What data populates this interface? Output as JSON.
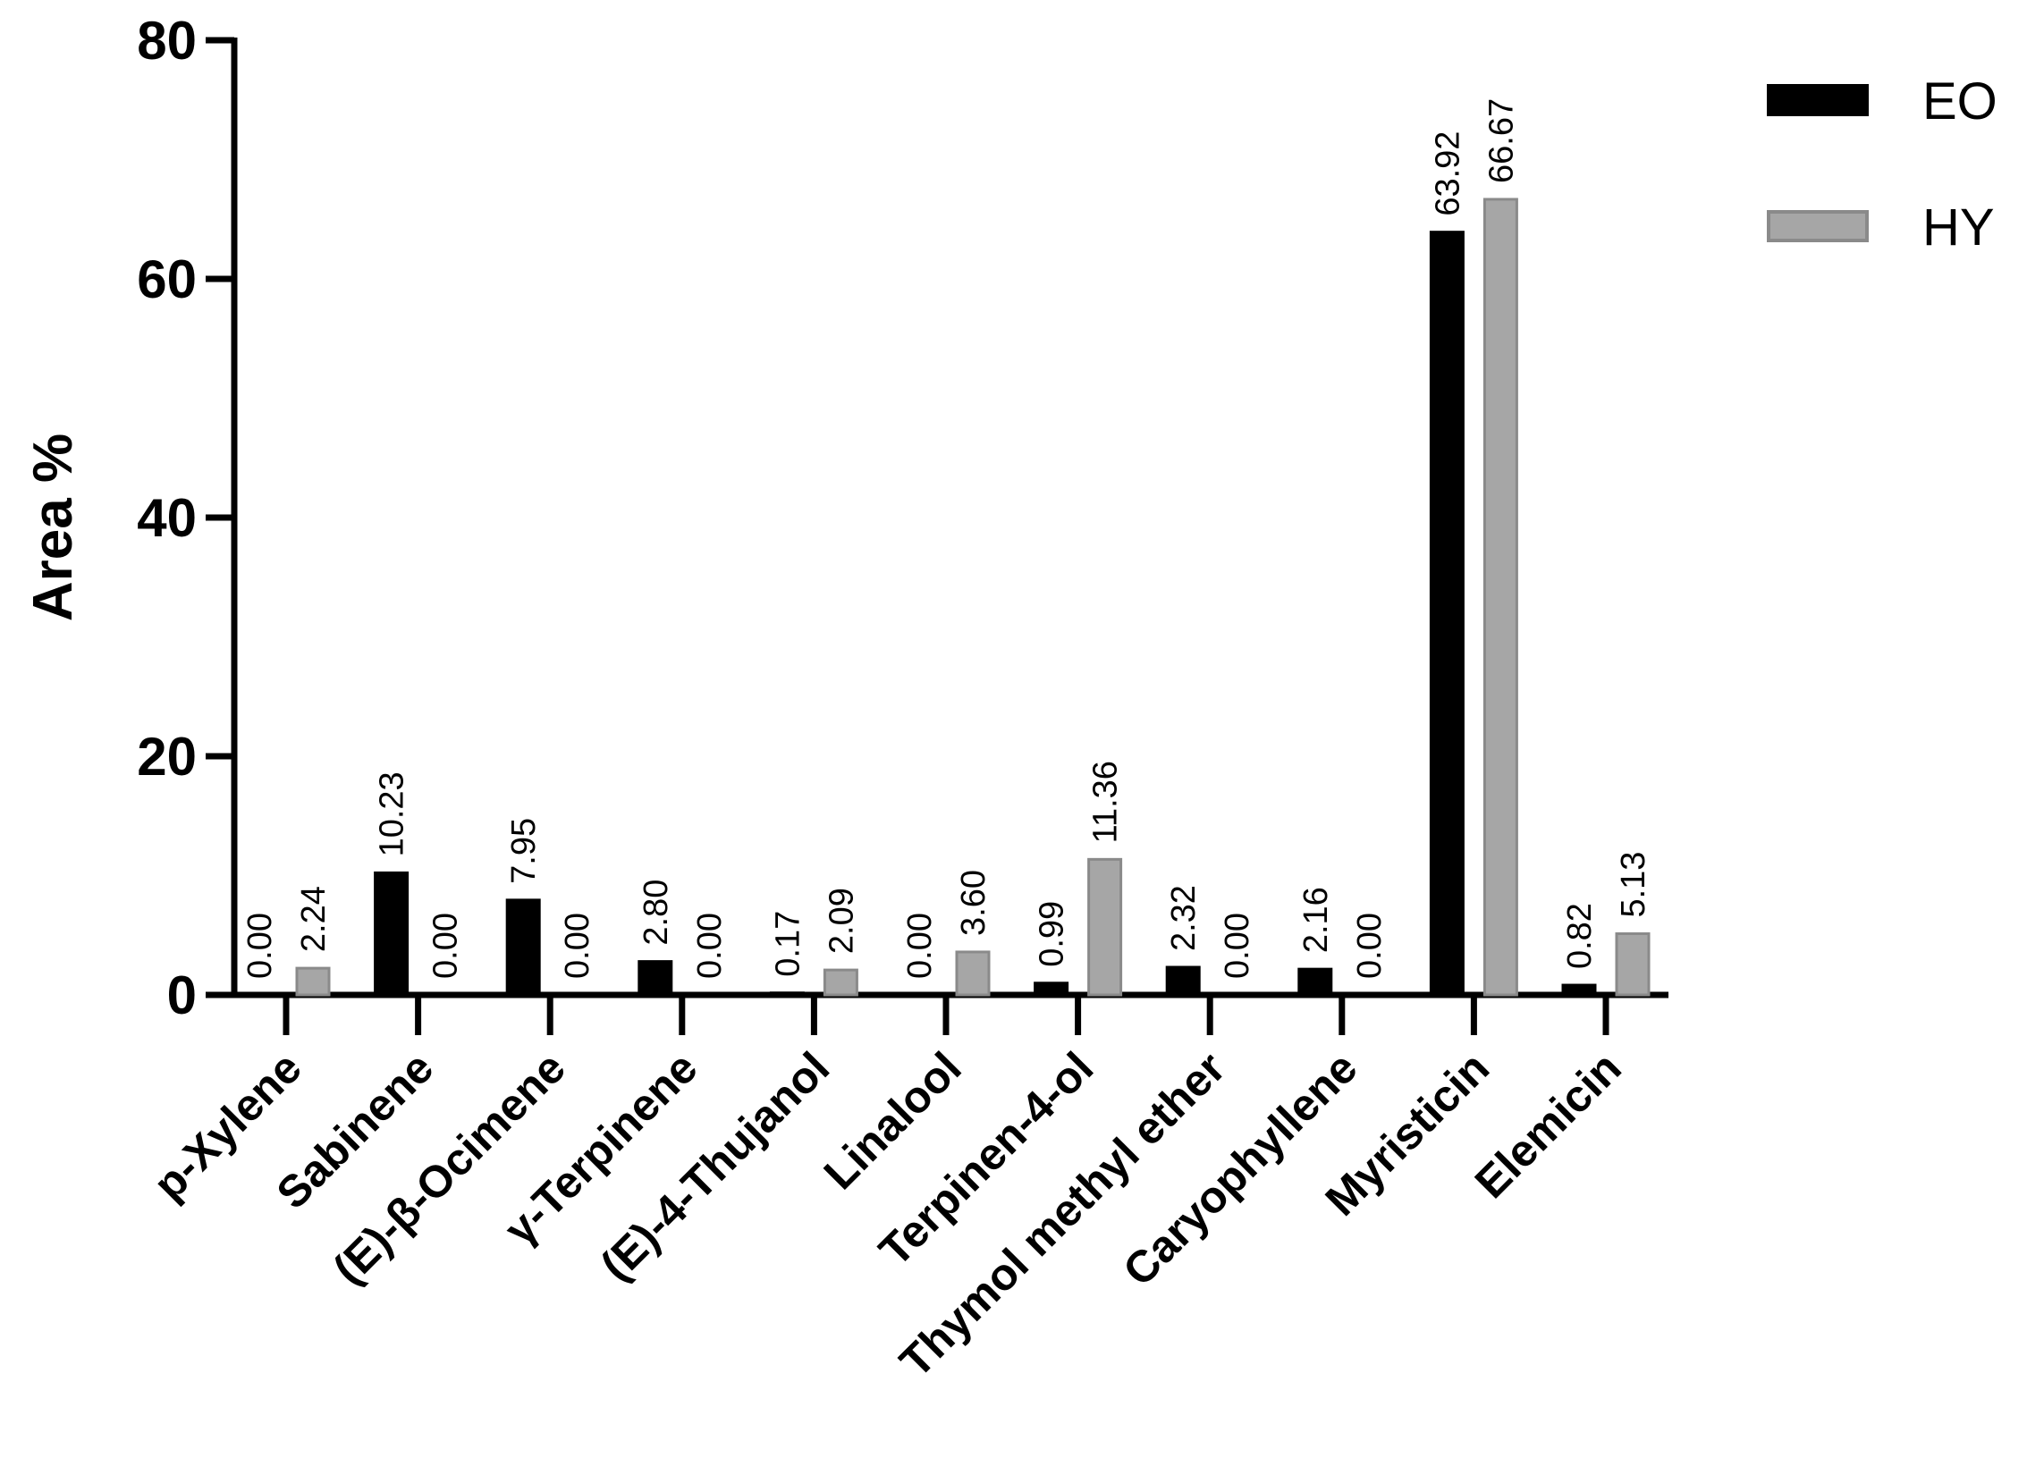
{
  "chart_data": {
    "type": "bar",
    "categories": [
      "p-Xylene",
      "Sabinene",
      "(E)-β-Ocimene",
      "γ-Terpinene",
      "(E)-4-Thujanol",
      "Linalool",
      "Terpinen-4-ol",
      "Thymol methyl ether",
      "Caryophyllene",
      "Myristicin",
      "Elemicin"
    ],
    "series": [
      {
        "name": "EO",
        "color": "#000000",
        "values": [
          0.0,
          10.23,
          7.95,
          2.8,
          0.17,
          0.0,
          0.99,
          2.32,
          2.16,
          63.92,
          0.82
        ],
        "labels": [
          "0.00",
          "10.23",
          "7.95",
          "2.80",
          "0.17",
          "0.00",
          "0.99",
          "2.32",
          "2.16",
          "63.92",
          "0.82"
        ]
      },
      {
        "name": "HY",
        "color": "#a6a6a6",
        "values": [
          2.24,
          0.0,
          0.0,
          0.0,
          2.09,
          3.6,
          11.36,
          0.0,
          0.0,
          66.67,
          5.13
        ],
        "labels": [
          "2.24",
          "0.00",
          "0.00",
          "0.00",
          "2.09",
          "3.60",
          "11.36",
          "0.00",
          "0.00",
          "66.67",
          "5.13"
        ]
      }
    ],
    "ylabel": "Area %",
    "xlabel": "",
    "ylim": [
      0,
      80
    ],
    "yticks": [
      "0",
      "20",
      "40",
      "60",
      "80"
    ],
    "grid": false,
    "legend_position": "top-right"
  }
}
